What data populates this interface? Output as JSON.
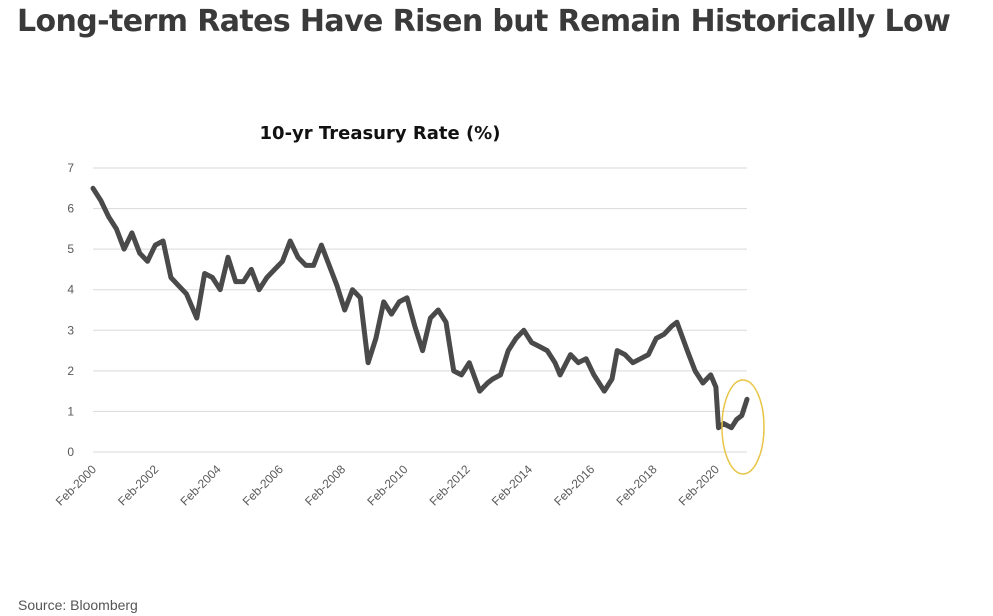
{
  "headline": "Long-term Rates Have Risen but Remain Historically Low",
  "source": "Source: Bloomberg",
  "colors": {
    "line": "#4a4a4a",
    "grid": "#d9d9d9",
    "highlight": "#e8c547"
  },
  "chart_data": {
    "type": "line",
    "title": "10-yr Treasury Rate (%)",
    "xlabel": "",
    "ylabel": "",
    "ylim": [
      0,
      7
    ],
    "yticks": [
      0,
      1,
      2,
      3,
      4,
      5,
      6,
      7
    ],
    "xlim": [
      "Feb-2000",
      "Feb-2021"
    ],
    "xticks": [
      "Feb-2000",
      "Feb-2002",
      "Feb-2004",
      "Feb-2006",
      "Feb-2008",
      "Feb-2010",
      "Feb-2012",
      "Feb-2014",
      "Feb-2016",
      "Feb-2018",
      "Feb-2020"
    ],
    "grid": "horizontal",
    "legend": "none",
    "annotation": "circle highlighting 2020-2021 rise",
    "series": [
      {
        "x": [
          "2000-02",
          "2000-05",
          "2000-08",
          "2000-11",
          "2001-02",
          "2001-05",
          "2001-08",
          "2001-11",
          "2002-02",
          "2002-05",
          "2002-08",
          "2002-11",
          "2003-02",
          "2003-06",
          "2003-09",
          "2003-12",
          "2004-03",
          "2004-06",
          "2004-09",
          "2004-12",
          "2005-03",
          "2005-06",
          "2005-09",
          "2005-12",
          "2006-03",
          "2006-06",
          "2006-09",
          "2006-12",
          "2007-03",
          "2007-06",
          "2007-09",
          "2007-12",
          "2008-03",
          "2008-06",
          "2008-09",
          "2008-12",
          "2009-03",
          "2009-06",
          "2009-09",
          "2009-12",
          "2010-03",
          "2010-06",
          "2010-09",
          "2010-12",
          "2011-03",
          "2011-06",
          "2011-09",
          "2011-12",
          "2012-03",
          "2012-07",
          "2012-10",
          "2012-12",
          "2013-03",
          "2013-06",
          "2013-09",
          "2013-12",
          "2014-03",
          "2014-06",
          "2014-09",
          "2014-12",
          "2015-02",
          "2015-06",
          "2015-09",
          "2015-12",
          "2016-03",
          "2016-07",
          "2016-10",
          "2016-12",
          "2017-03",
          "2017-06",
          "2017-09",
          "2017-12",
          "2018-03",
          "2018-06",
          "2018-09",
          "2018-11",
          "2019-03",
          "2019-06",
          "2019-09",
          "2019-12",
          "2020-02",
          "2020-03",
          "2020-05",
          "2020-08",
          "2020-10",
          "2020-12",
          "2021-02"
        ],
        "values": [
          6.5,
          6.2,
          5.8,
          5.5,
          5.0,
          5.4,
          4.9,
          4.7,
          5.1,
          5.2,
          4.3,
          4.1,
          3.9,
          3.3,
          4.4,
          4.3,
          4.0,
          4.8,
          4.2,
          4.2,
          4.5,
          4.0,
          4.3,
          4.5,
          4.7,
          5.2,
          4.8,
          4.6,
          4.6,
          5.1,
          4.6,
          4.1,
          3.5,
          4.0,
          3.8,
          2.2,
          2.8,
          3.7,
          3.4,
          3.7,
          3.8,
          3.1,
          2.5,
          3.3,
          3.5,
          3.2,
          2.0,
          1.9,
          2.2,
          1.5,
          1.7,
          1.8,
          1.9,
          2.5,
          2.8,
          3.0,
          2.7,
          2.6,
          2.5,
          2.2,
          1.9,
          2.4,
          2.2,
          2.3,
          1.9,
          1.5,
          1.8,
          2.5,
          2.4,
          2.2,
          2.3,
          2.4,
          2.8,
          2.9,
          3.1,
          3.2,
          2.5,
          2.0,
          1.7,
          1.9,
          1.6,
          0.6,
          0.7,
          0.6,
          0.8,
          0.9,
          1.3
        ]
      }
    ]
  }
}
